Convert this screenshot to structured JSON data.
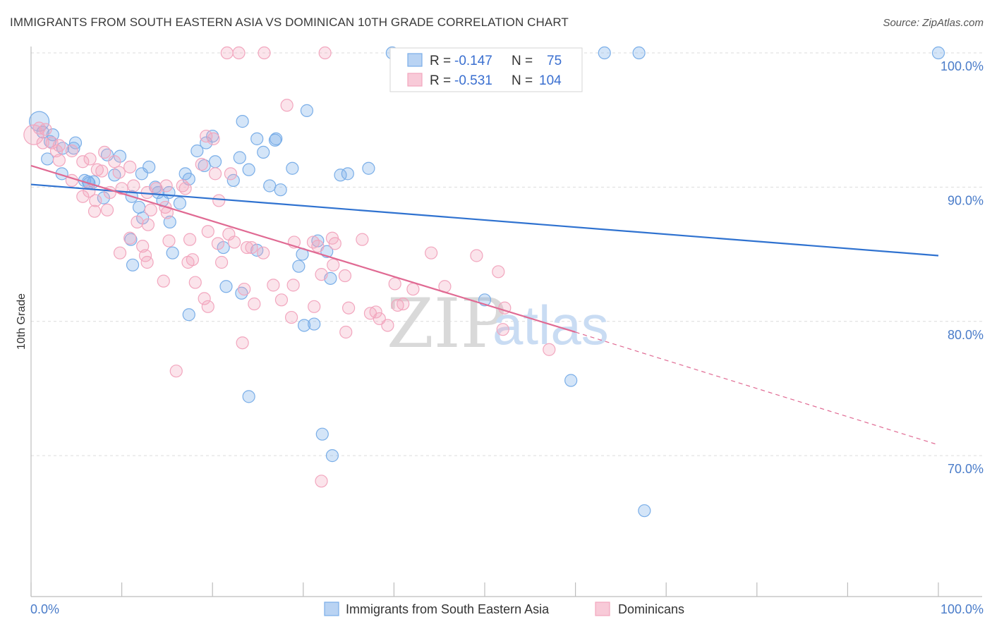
{
  "header": {
    "title": "IMMIGRANTS FROM SOUTH EASTERN ASIA VS DOMINICAN 10TH GRADE CORRELATION CHART",
    "source": "Source: ZipAtlas.com"
  },
  "legend": {
    "rows": [
      {
        "r_label": "R = ",
        "r_value": "-0.147",
        "n_label": "N = ",
        "n_value": "75"
      },
      {
        "r_label": "R = ",
        "r_value": "-0.531",
        "n_label": "N = ",
        "n_value": "104"
      }
    ]
  },
  "watermark": {
    "zip": "ZIP",
    "atlas": "atlas"
  },
  "colors": {
    "blue": "#7aaee8",
    "blue_line": "#2f72d0",
    "pink": "#f2a6be",
    "pink_line": "#e06a93",
    "tick": "#4a7cc9",
    "grid": "#dcdcdc"
  },
  "chart_data": {
    "type": "scatter",
    "title": "IMMIGRANTS FROM SOUTH EASTERN ASIA VS DOMINICAN 10TH GRADE CORRELATION CHART",
    "xlabel": "",
    "ylabel": "10th Grade",
    "xlim": [
      0,
      100
    ],
    "ylim": [
      59.5,
      101
    ],
    "x_tick_labels": [
      "0.0%",
      "100.0%"
    ],
    "y_ticks": [
      70,
      80,
      90,
      100
    ],
    "y_tick_labels": [
      "70.0%",
      "80.0%",
      "90.0%",
      "100.0%"
    ],
    "grid": true,
    "legend_position": "top-center",
    "series": [
      {
        "name": "Immigrants from South Eastern Asia",
        "color": "#7aaee8",
        "trend": {
          "x0": 0,
          "y0": 90.2,
          "x1": 100,
          "y1": 84.9
        },
        "points": [
          [
            0.9,
            94.9
          ],
          [
            1.3,
            94.1
          ],
          [
            2.4,
            93.9
          ],
          [
            2.1,
            93.4
          ],
          [
            1.8,
            92.1
          ],
          [
            3.5,
            92.9
          ],
          [
            4.7,
            92.9
          ],
          [
            4.9,
            93.3
          ],
          [
            9.8,
            92.3
          ],
          [
            8.4,
            92.4
          ],
          [
            3.4,
            91.0
          ],
          [
            5.9,
            90.5
          ],
          [
            6.4,
            90.3
          ],
          [
            6.9,
            90.4
          ],
          [
            8.0,
            89.2
          ],
          [
            9.2,
            90.9
          ],
          [
            11.1,
            89.3
          ],
          [
            12.2,
            91.0
          ],
          [
            13.0,
            91.5
          ],
          [
            13.7,
            90.0
          ],
          [
            14.5,
            89.0
          ],
          [
            15.2,
            89.6
          ],
          [
            16.4,
            88.8
          ],
          [
            17.0,
            91.0
          ],
          [
            17.4,
            90.6
          ],
          [
            11.9,
            88.5
          ],
          [
            12.3,
            87.7
          ],
          [
            15.3,
            87.4
          ],
          [
            11.0,
            86.1
          ],
          [
            11.2,
            84.2
          ],
          [
            15.6,
            85.1
          ],
          [
            17.4,
            80.5
          ],
          [
            18.3,
            92.7
          ],
          [
            19.3,
            93.3
          ],
          [
            20.0,
            93.8
          ],
          [
            19.1,
            91.6
          ],
          [
            20.3,
            91.9
          ],
          [
            23.3,
            94.9
          ],
          [
            23.0,
            92.2
          ],
          [
            22.3,
            90.5
          ],
          [
            24.0,
            91.3
          ],
          [
            24.9,
            93.6
          ],
          [
            25.6,
            92.6
          ],
          [
            27.0,
            93.6
          ],
          [
            26.3,
            90.1
          ],
          [
            27.5,
            89.8
          ],
          [
            26.9,
            93.5
          ],
          [
            28.8,
            91.4
          ],
          [
            30.4,
            95.7
          ],
          [
            29.9,
            85.0
          ],
          [
            21.2,
            85.5
          ],
          [
            21.5,
            82.6
          ],
          [
            23.2,
            82.1
          ],
          [
            24.9,
            85.3
          ],
          [
            29.5,
            84.1
          ],
          [
            31.6,
            86.0
          ],
          [
            32.6,
            85.2
          ],
          [
            34.1,
            90.9
          ],
          [
            34.9,
            91.0
          ],
          [
            37.2,
            91.4
          ],
          [
            30.1,
            79.7
          ],
          [
            31.2,
            79.8
          ],
          [
            33.0,
            83.2
          ],
          [
            39.8,
            100.0
          ],
          [
            63.2,
            100.0
          ],
          [
            67.0,
            100.0
          ],
          [
            100.0,
            100.0
          ],
          [
            50.0,
            81.6
          ],
          [
            59.5,
            75.6
          ],
          [
            24.0,
            74.4
          ],
          [
            32.1,
            71.6
          ],
          [
            33.2,
            70.0
          ],
          [
            67.6,
            65.9
          ],
          [
            6.3,
            90.4
          ],
          [
            14.0,
            89.6
          ]
        ]
      },
      {
        "name": "Dominicans",
        "color": "#f2a6be",
        "trend": {
          "x0": 0,
          "y0": 91.6,
          "x1": 60,
          "y1": 79.2
        },
        "trend_extension": {
          "x0": 60,
          "y0": 79.2,
          "x1": 100,
          "y1": 70.8
        },
        "points": [
          [
            0.3,
            93.9
          ],
          [
            0.9,
            94.4
          ],
          [
            1.6,
            94.3
          ],
          [
            2.3,
            93.3
          ],
          [
            2.8,
            92.7
          ],
          [
            3.1,
            93.1
          ],
          [
            4.5,
            92.7
          ],
          [
            3.1,
            92.0
          ],
          [
            5.7,
            91.9
          ],
          [
            6.5,
            92.1
          ],
          [
            8.1,
            92.6
          ],
          [
            9.2,
            91.9
          ],
          [
            7.3,
            91.3
          ],
          [
            7.8,
            91.2
          ],
          [
            9.7,
            91.1
          ],
          [
            10.9,
            91.5
          ],
          [
            4.5,
            90.5
          ],
          [
            6.4,
            89.7
          ],
          [
            5.7,
            89.3
          ],
          [
            7.1,
            89.0
          ],
          [
            8.7,
            89.6
          ],
          [
            10.0,
            89.9
          ],
          [
            11.3,
            90.1
          ],
          [
            13.8,
            89.9
          ],
          [
            14.9,
            90.1
          ],
          [
            16.7,
            90.1
          ],
          [
            17.0,
            89.9
          ],
          [
            18.8,
            91.7
          ],
          [
            20.3,
            91.0
          ],
          [
            22.0,
            91.0
          ],
          [
            12.8,
            89.6
          ],
          [
            13.2,
            88.3
          ],
          [
            15.0,
            88.1
          ],
          [
            14.8,
            88.5
          ],
          [
            7.0,
            88.2
          ],
          [
            10.9,
            86.2
          ],
          [
            12.9,
            87.2
          ],
          [
            15.2,
            86.0
          ],
          [
            17.5,
            86.1
          ],
          [
            19.5,
            86.7
          ],
          [
            20.6,
            85.8
          ],
          [
            22.4,
            85.9
          ],
          [
            12.3,
            85.6
          ],
          [
            9.8,
            85.1
          ],
          [
            12.6,
            84.9
          ],
          [
            12.8,
            84.4
          ],
          [
            17.3,
            84.4
          ],
          [
            17.8,
            84.6
          ],
          [
            21.0,
            84.4
          ],
          [
            23.8,
            85.5
          ],
          [
            24.3,
            85.5
          ],
          [
            25.6,
            85.1
          ],
          [
            29.0,
            85.9
          ],
          [
            31.1,
            85.9
          ],
          [
            31.6,
            85.6
          ],
          [
            33.5,
            85.8
          ],
          [
            33.2,
            86.2
          ],
          [
            36.5,
            86.1
          ],
          [
            44.1,
            85.1
          ],
          [
            49.1,
            84.9
          ],
          [
            14.6,
            83.0
          ],
          [
            18.1,
            82.9
          ],
          [
            19.1,
            81.7
          ],
          [
            19.5,
            81.1
          ],
          [
            24.6,
            81.3
          ],
          [
            26.7,
            82.7
          ],
          [
            28.9,
            82.7
          ],
          [
            28.7,
            80.3
          ],
          [
            31.2,
            81.1
          ],
          [
            32.0,
            83.5
          ],
          [
            33.3,
            84.2
          ],
          [
            34.6,
            83.4
          ],
          [
            35.0,
            81.0
          ],
          [
            37.4,
            80.6
          ],
          [
            38.4,
            80.2
          ],
          [
            38.0,
            80.7
          ],
          [
            39.3,
            79.7
          ],
          [
            40.4,
            81.2
          ],
          [
            40.1,
            82.8
          ],
          [
            41.0,
            81.3
          ],
          [
            42.1,
            82.4
          ],
          [
            45.6,
            82.6
          ],
          [
            51.5,
            83.7
          ],
          [
            52.2,
            81.0
          ],
          [
            52.0,
            79.4
          ],
          [
            57.1,
            77.9
          ],
          [
            34.7,
            79.2
          ],
          [
            23.3,
            78.4
          ],
          [
            16.0,
            76.3
          ],
          [
            20.7,
            89.0
          ],
          [
            19.3,
            93.8
          ],
          [
            20.1,
            93.6
          ],
          [
            28.2,
            96.1
          ],
          [
            21.6,
            100.0
          ],
          [
            22.9,
            100.0
          ],
          [
            25.7,
            100.0
          ],
          [
            32.4,
            100.0
          ],
          [
            32.0,
            68.1
          ],
          [
            1.3,
            93.3
          ],
          [
            8.4,
            88.3
          ],
          [
            11.7,
            87.4
          ],
          [
            21.8,
            86.5
          ],
          [
            23.5,
            82.4
          ],
          [
            27.6,
            81.6
          ]
        ]
      }
    ]
  },
  "bottom_legend": {
    "items": [
      {
        "label": "Immigrants from South Eastern Asia"
      },
      {
        "label": "Dominicans"
      }
    ]
  }
}
